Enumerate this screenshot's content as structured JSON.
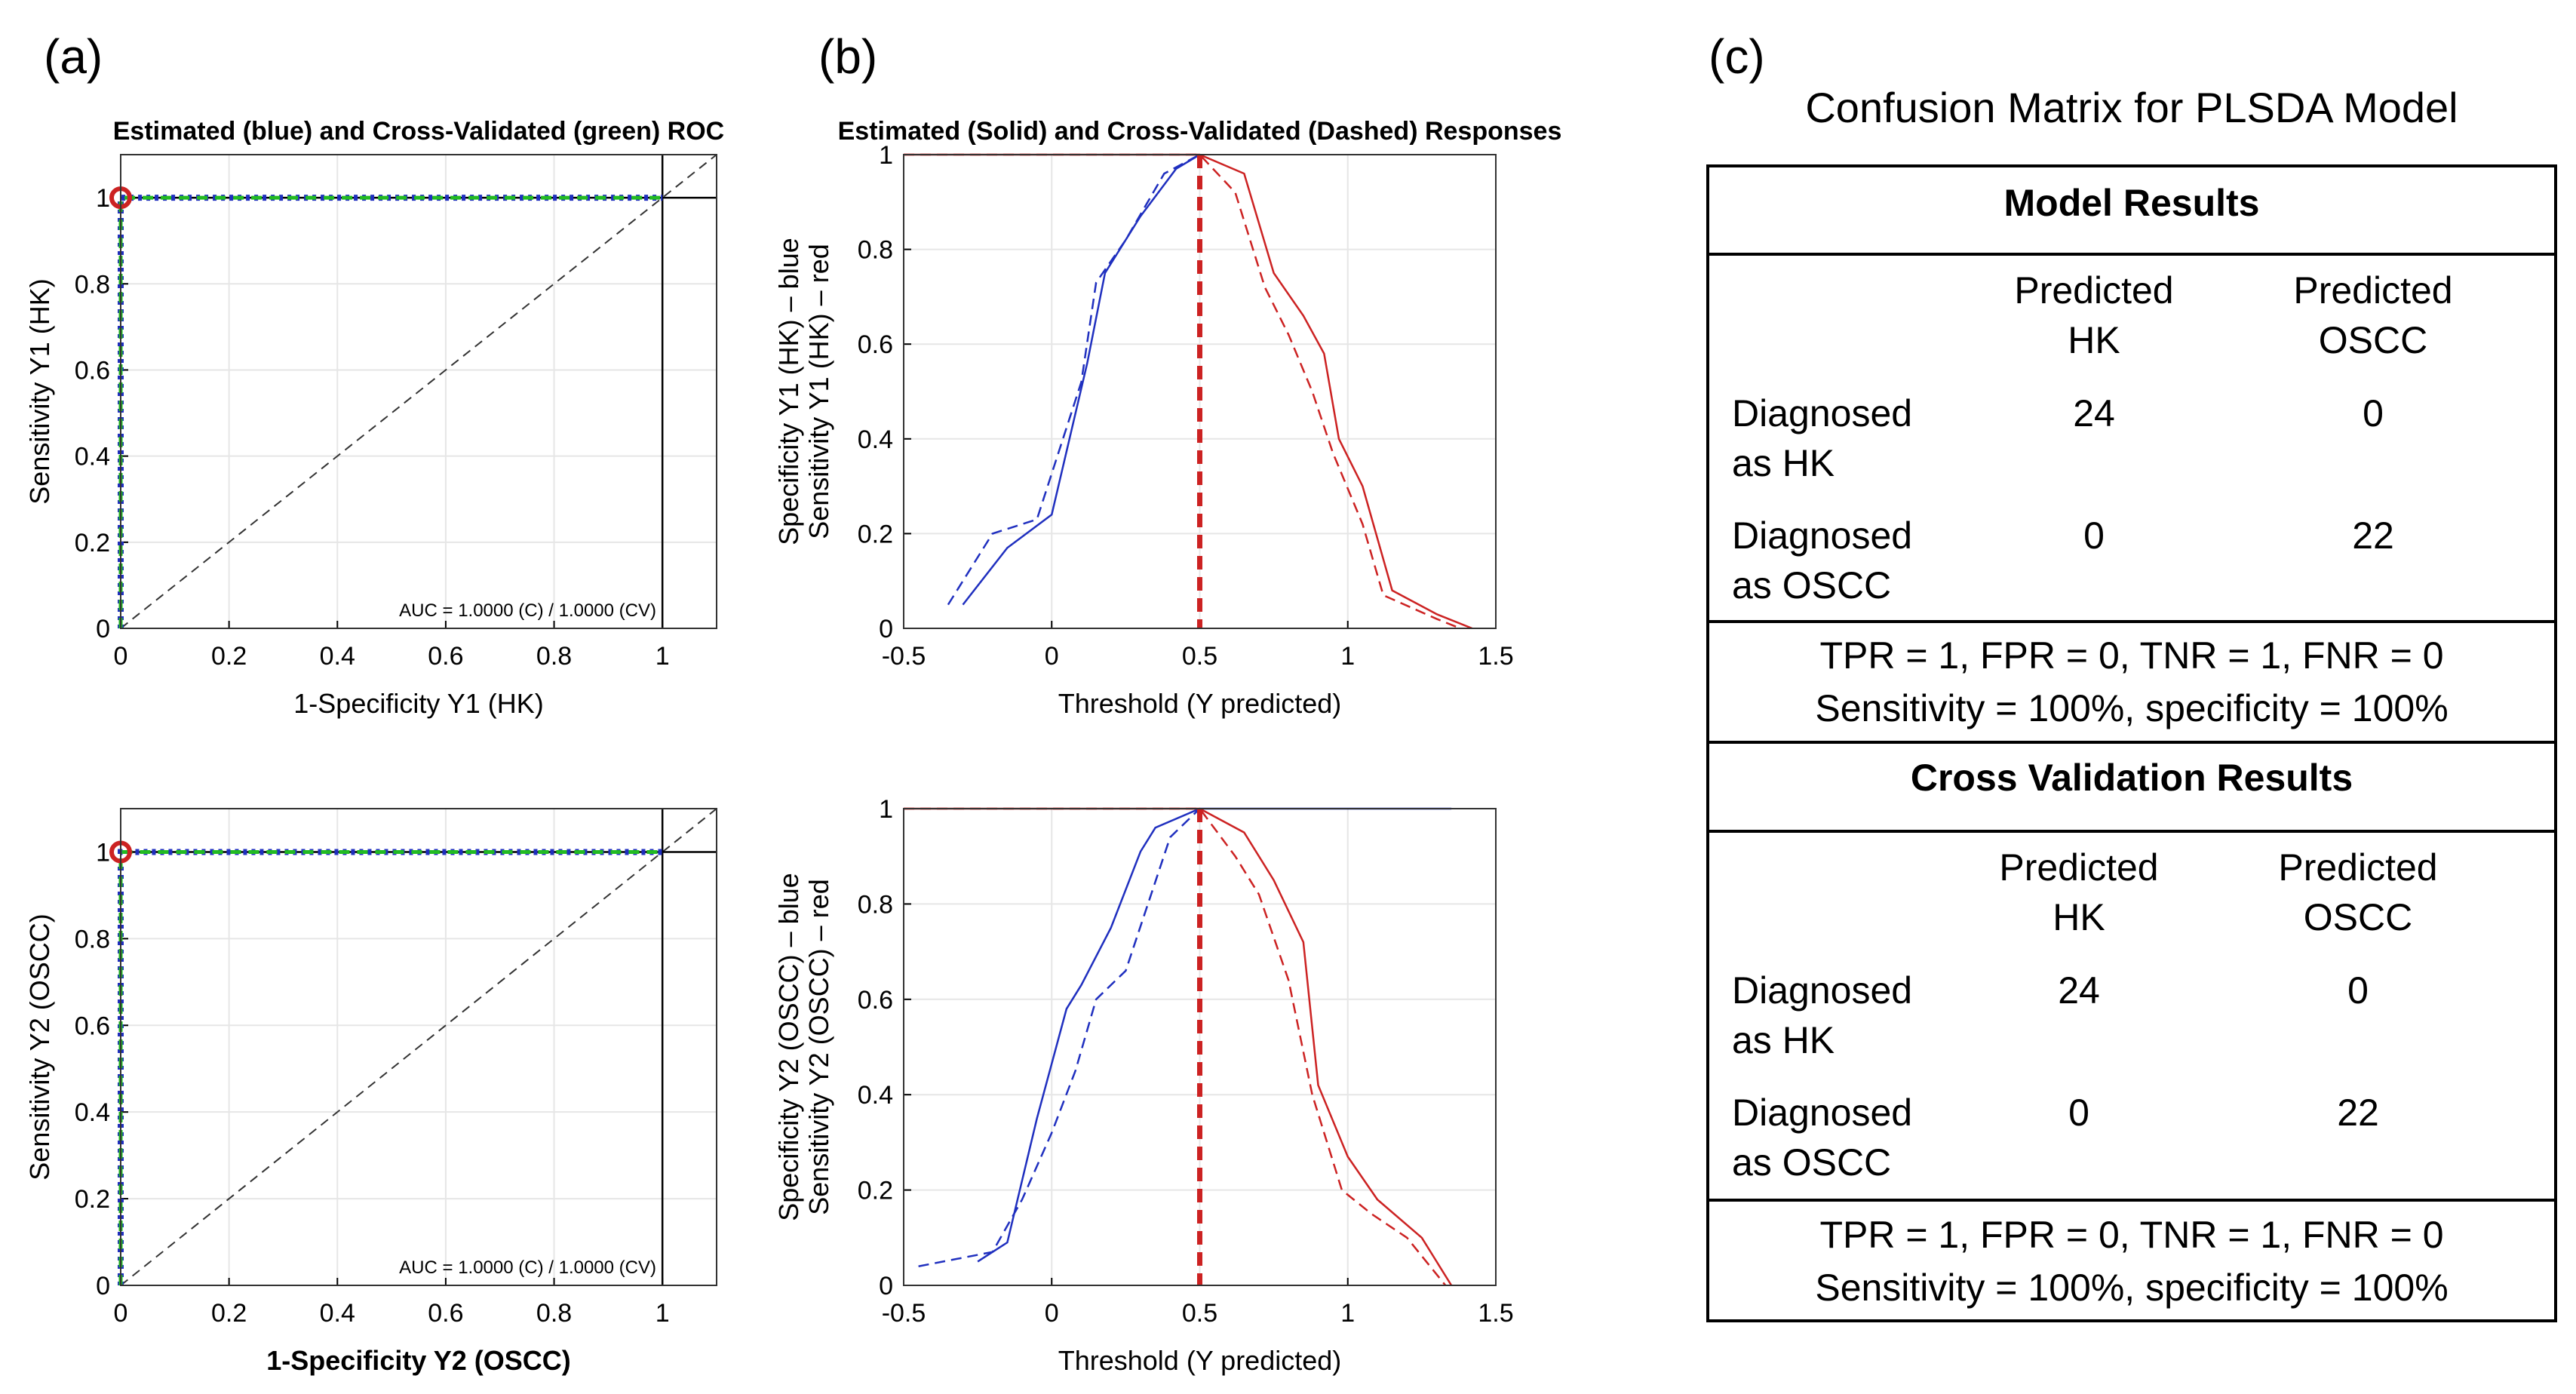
{
  "panels": {
    "a": "(a)",
    "b": "(b)",
    "c": "(c)"
  },
  "colors": {
    "blue": "#1f2fbf",
    "green": "#22bb22",
    "red": "#cc2222",
    "grid": "#e6e6e6"
  },
  "chart_data": [
    {
      "type": "line",
      "panel": "a",
      "title": "Estimated (blue) and Cross-Validated (green) ROC",
      "xlabel": "1-Specificity Y1 (HK)",
      "ylabel": "Sensitivity Y1 (HK)",
      "xlim": [
        0,
        1.1
      ],
      "ylim": [
        0,
        1.1
      ],
      "xticks": [
        "0",
        "0.2",
        "0.4",
        "0.6",
        "0.8",
        "1"
      ],
      "yticks": [
        "0",
        "0.2",
        "0.4",
        "0.6",
        "0.8",
        "1"
      ],
      "annotation": "AUC = 1.0000 (C) / 1.0000 (CV)",
      "series": [
        {
          "x": [
            0,
            0,
            1
          ],
          "y": [
            0,
            1,
            1
          ]
        },
        {
          "x": [
            0,
            0,
            1
          ],
          "y": [
            0,
            1,
            1
          ]
        }
      ],
      "grid": true
    },
    {
      "type": "line",
      "panel": "b",
      "title": "Estimated (Solid) and Cross-Validated (Dashed) Responses",
      "xlabel": "Threshold (Y predicted)",
      "ylabel": "Specificity Y1 (HK) – blue\nSensitivity Y1 (HK) – red",
      "xlim": [
        -0.5,
        1.5
      ],
      "ylim": [
        0,
        1
      ],
      "xticks": [
        "-0.5",
        "0",
        "0.5",
        "1",
        "1.5"
      ],
      "yticks": [
        "0",
        "0.2",
        "0.4",
        "0.6",
        "0.8",
        "1"
      ],
      "threshold": 0.5,
      "series": [
        {
          "style": "solid",
          "x": [
            -0.3,
            -0.15,
            0,
            0.12,
            0.18,
            0.3,
            0.42,
            0.5
          ],
          "y": [
            0.05,
            0.17,
            0.24,
            0.56,
            0.75,
            0.87,
            0.97,
            1
          ]
        },
        {
          "style": "dashed",
          "x": [
            -0.35,
            -0.2,
            -0.05,
            0.1,
            0.15,
            0.25,
            0.38,
            0.5
          ],
          "y": [
            0.05,
            0.2,
            0.23,
            0.52,
            0.73,
            0.82,
            0.96,
            1
          ]
        },
        {
          "style": "solid",
          "x": [
            -0.5,
            0.5,
            0.65,
            0.75,
            0.85,
            0.92,
            0.97,
            1.05,
            1.15,
            1.3,
            1.42
          ],
          "y": [
            1,
            1,
            0.96,
            0.75,
            0.66,
            0.58,
            0.4,
            0.3,
            0.08,
            0.03,
            0
          ]
        },
        {
          "style": "dashed",
          "x": [
            -0.5,
            0.5,
            0.62,
            0.72,
            0.8,
            0.88,
            0.95,
            1.05,
            1.12,
            1.3,
            1.38
          ],
          "y": [
            1,
            1,
            0.92,
            0.72,
            0.62,
            0.5,
            0.37,
            0.22,
            0.07,
            0.02,
            0
          ]
        }
      ],
      "grid": true
    },
    {
      "type": "line",
      "panel": "a",
      "title": "",
      "xlabel": "1-Specificity Y2 (OSCC)",
      "ylabel": "Sensitivity Y2 (OSCC)",
      "xlim": [
        0,
        1.1
      ],
      "ylim": [
        0,
        1.1
      ],
      "xticks": [
        "0",
        "0.2",
        "0.4",
        "0.6",
        "0.8",
        "1"
      ],
      "yticks": [
        "0",
        "0.2",
        "0.4",
        "0.6",
        "0.8",
        "1"
      ],
      "annotation": "AUC = 1.0000 (C) / 1.0000 (CV)",
      "series": [
        {
          "x": [
            0,
            0,
            1
          ],
          "y": [
            0,
            1,
            1
          ]
        },
        {
          "x": [
            0,
            0,
            1
          ],
          "y": [
            0,
            1,
            1
          ]
        }
      ],
      "grid": true
    },
    {
      "type": "line",
      "panel": "b",
      "title": "",
      "xlabel": "Threshold (Y predicted)",
      "ylabel": "Specificity Y2 (OSCC) – blue\nSensitivity Y2 (OSCC) – red",
      "xlim": [
        -0.5,
        1.5
      ],
      "ylim": [
        0,
        1
      ],
      "xticks": [
        "-0.5",
        "0",
        "0.5",
        "1",
        "1.5"
      ],
      "yticks": [
        "0",
        "0.2",
        "0.4",
        "0.6",
        "0.8",
        "1"
      ],
      "threshold": 0.5,
      "series": [
        {
          "style": "solid",
          "x": [
            -0.25,
            -0.15,
            -0.05,
            0.05,
            0.1,
            0.2,
            0.3,
            0.35,
            0.5,
            1.35
          ],
          "y": [
            0.05,
            0.09,
            0.35,
            0.58,
            0.63,
            0.75,
            0.91,
            0.96,
            1,
            1
          ]
        },
        {
          "style": "dashed",
          "x": [
            -0.45,
            -0.2,
            -0.1,
            0.0,
            0.08,
            0.15,
            0.25,
            0.4,
            0.5
          ],
          "y": [
            0.04,
            0.07,
            0.18,
            0.32,
            0.45,
            0.6,
            0.66,
            0.94,
            1
          ]
        },
        {
          "style": "solid",
          "x": [
            -0.5,
            0.5,
            0.65,
            0.75,
            0.85,
            0.9,
            1.0,
            1.1,
            1.25,
            1.35
          ],
          "y": [
            1,
            1,
            0.95,
            0.85,
            0.72,
            0.42,
            0.27,
            0.18,
            0.1,
            0
          ]
        },
        {
          "style": "dashed",
          "x": [
            -0.5,
            0.5,
            0.62,
            0.7,
            0.8,
            0.88,
            0.98,
            1.08,
            1.2,
            1.33
          ],
          "y": [
            1,
            1,
            0.9,
            0.82,
            0.64,
            0.4,
            0.2,
            0.15,
            0.1,
            0
          ]
        }
      ],
      "grid": true
    }
  ],
  "confusion": {
    "title": "Confusion Matrix for PLSDA Model",
    "model_header": "Model Results",
    "cv_header": "Cross Validation Results",
    "col1": [
      "Predicted",
      "HK"
    ],
    "col2": [
      "Predicted",
      "OSCC"
    ],
    "row1": [
      "Diagnosed",
      "as HK"
    ],
    "row2": [
      "Diagnosed",
      "as OSCC"
    ],
    "model_values": [
      "24",
      "0",
      "0",
      "22"
    ],
    "cv_values": [
      "24",
      "0",
      "0",
      "22"
    ],
    "summary1": "TPR = 1, FPR = 0, TNR = 1, FNR = 0",
    "summary2": "Sensitivity = 100%, specificity = 100%"
  }
}
